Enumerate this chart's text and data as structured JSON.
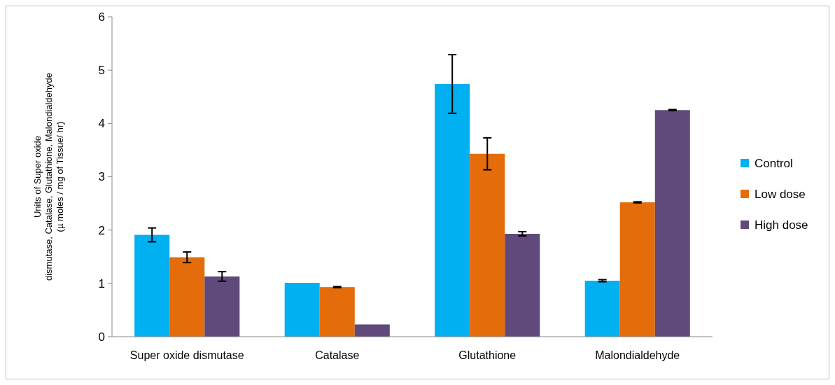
{
  "chart_data": {
    "type": "bar",
    "ylabel": "Units of Super oxide\ndismutase, Catalase, Glutathione, Malondialdehyde\n(µ moles / mg of Tissue/ hr)",
    "categories": [
      "Super oxide dismutase",
      "Catalase",
      "Glutathione",
      "Malondialdehyde"
    ],
    "series": [
      {
        "name": "Control",
        "color": "#00b0f0",
        "values": [
          1.91,
          1.01,
          4.74,
          1.05
        ],
        "errors": [
          0.13,
          null,
          0.55,
          0.02
        ]
      },
      {
        "name": "Low dose",
        "color": "#e46c0a",
        "values": [
          1.49,
          0.93,
          3.43,
          2.52
        ],
        "errors": [
          0.1,
          0.01,
          0.3,
          0.01
        ]
      },
      {
        "name": "High dose",
        "color": "#604a7b",
        "values": [
          1.13,
          0.23,
          1.93,
          4.25
        ],
        "errors": [
          0.09,
          null,
          0.04,
          0.01
        ]
      }
    ],
    "ylim": [
      0,
      6
    ],
    "yticks": [
      0,
      1,
      2,
      3,
      4,
      5,
      6
    ],
    "grid": false,
    "legend": "right"
  }
}
